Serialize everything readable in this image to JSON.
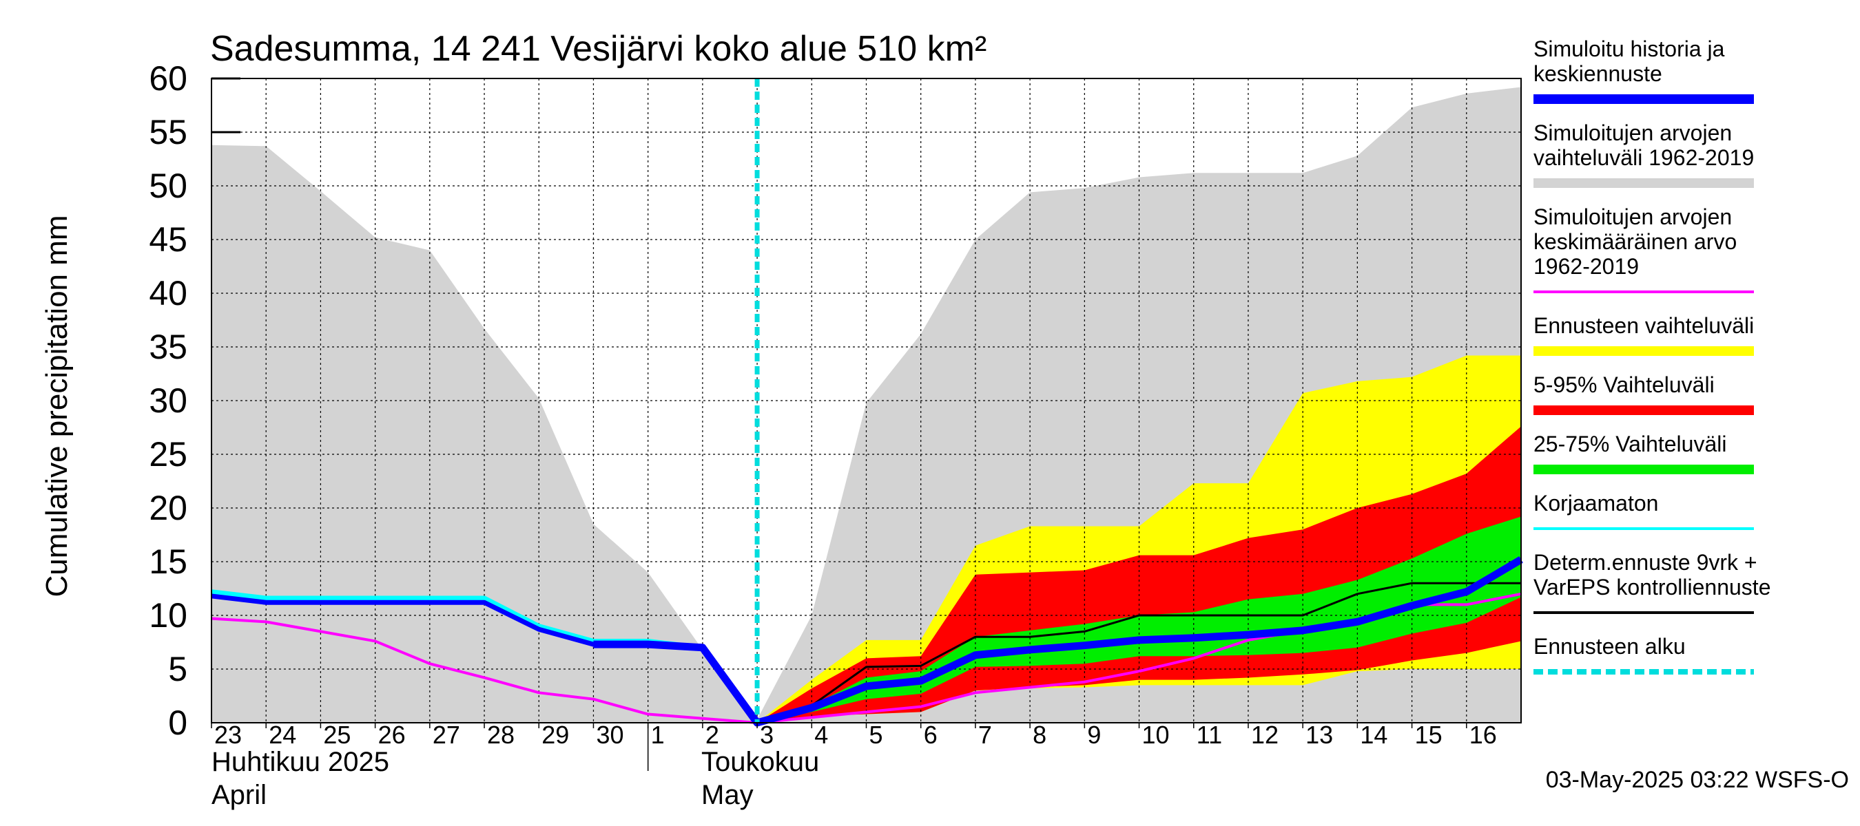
{
  "colors": {
    "history_range": "#d3d3d3",
    "ens_range": "#ffff00",
    "p5_95": "#ff0000",
    "p25_75": "#00ee00",
    "simulated": "#0000ff",
    "mean": "#ff00ff",
    "uncorrected": "#00ffff",
    "deterministic": "#000000",
    "forecast_start": "#00dddd",
    "grid": "#000000"
  },
  "chart_data": {
    "type": "area",
    "title": "Sadesumma, 14 241 Vesijärvi koko alue 510 km²",
    "ylabel": "Cumulative precipitation   mm",
    "xlabel": "",
    "ylim": [
      0,
      60
    ],
    "yticks": [
      0,
      5,
      10,
      15,
      20,
      25,
      30,
      35,
      40,
      45,
      50,
      55,
      60
    ],
    "grid": true,
    "x_range": [
      0,
      24
    ],
    "day_ticks": [
      {
        "x": 0,
        "label": "23"
      },
      {
        "x": 1,
        "label": "24"
      },
      {
        "x": 2,
        "label": "25"
      },
      {
        "x": 3,
        "label": "26"
      },
      {
        "x": 4,
        "label": "27"
      },
      {
        "x": 5,
        "label": "28"
      },
      {
        "x": 6,
        "label": "29"
      },
      {
        "x": 7,
        "label": "30"
      },
      {
        "x": 8,
        "label": "1"
      },
      {
        "x": 9,
        "label": "2"
      },
      {
        "x": 10,
        "label": "3"
      },
      {
        "x": 11,
        "label": "4"
      },
      {
        "x": 12,
        "label": "5"
      },
      {
        "x": 13,
        "label": "6"
      },
      {
        "x": 14,
        "label": "7"
      },
      {
        "x": 15,
        "label": "8"
      },
      {
        "x": 16,
        "label": "9"
      },
      {
        "x": 17,
        "label": "10"
      },
      {
        "x": 18,
        "label": "11"
      },
      {
        "x": 19,
        "label": "12"
      },
      {
        "x": 20,
        "label": "13"
      },
      {
        "x": 21,
        "label": "14"
      },
      {
        "x": 22,
        "label": "15"
      },
      {
        "x": 23,
        "label": "16"
      }
    ],
    "month_labels": {
      "april_fi": "Huhtikuu  2025",
      "april_en": "April",
      "may_fi": "Toukokuu",
      "may_en": "May"
    },
    "month_boundary_x": 8,
    "forecast_start_x": 10,
    "legend_placement": "right",
    "timestamp": "03-May-2025 03:22 WSFS-O",
    "series": [
      {
        "name": "Simuloitujen arvojen vaihteluväli 1962-2019",
        "kind": "band",
        "x": [
          0,
          1,
          2,
          3,
          4,
          5,
          6,
          7,
          8,
          9,
          10,
          11,
          12,
          13,
          14,
          15,
          16,
          17,
          18,
          19,
          20,
          21,
          22,
          23,
          24
        ],
        "lower": [
          0,
          0,
          0,
          0,
          0,
          0,
          0,
          0,
          0,
          0,
          0,
          0,
          0,
          0,
          0,
          0,
          0,
          0,
          0,
          0,
          0,
          0,
          0,
          0,
          0
        ],
        "upper": [
          53.8,
          53.7,
          49.5,
          45.2,
          44.0,
          36.7,
          30.2,
          18.5,
          14.0,
          6.8,
          0.3,
          10.0,
          29.8,
          36.2,
          45.0,
          49.4,
          49.8,
          50.8,
          51.2,
          51.2,
          51.2,
          52.8,
          57.3,
          58.6,
          59.2
        ]
      },
      {
        "name": "Ennusteen vaihteluväli",
        "kind": "band",
        "x": [
          10,
          11,
          12,
          13,
          14,
          15,
          16,
          17,
          18,
          19,
          20,
          21,
          22,
          23,
          24
        ],
        "lower": [
          0,
          0.6,
          0.8,
          1.0,
          3.0,
          3.2,
          3.3,
          3.5,
          3.5,
          3.5,
          3.5,
          4.8,
          5.0,
          5.0,
          5.0
        ],
        "upper": [
          0,
          4.0,
          7.7,
          7.7,
          16.5,
          18.3,
          18.3,
          18.3,
          22.3,
          22.3,
          30.7,
          31.8,
          32.2,
          34.2,
          34.2
        ]
      },
      {
        "name": "5-95% Vaihteluväli",
        "kind": "band",
        "x": [
          10,
          11,
          12,
          13,
          14,
          15,
          16,
          17,
          18,
          19,
          20,
          21,
          22,
          23,
          24
        ],
        "lower": [
          0,
          0.6,
          0.8,
          1.0,
          3.0,
          3.3,
          3.5,
          4.0,
          4.0,
          4.2,
          4.5,
          4.9,
          5.8,
          6.5,
          7.6
        ],
        "upper": [
          0,
          3.2,
          6.0,
          6.2,
          13.8,
          14.0,
          14.2,
          15.6,
          15.6,
          17.2,
          18.0,
          20.0,
          21.3,
          23.2,
          27.6
        ]
      },
      {
        "name": "25-75% Vaihteluväli",
        "kind": "band",
        "x": [
          10,
          11,
          12,
          13,
          14,
          15,
          16,
          17,
          18,
          19,
          20,
          21,
          22,
          23,
          24
        ],
        "lower": [
          0,
          1.0,
          2.2,
          2.7,
          5.2,
          5.3,
          5.5,
          6.2,
          6.2,
          6.3,
          6.5,
          7.0,
          8.3,
          9.3,
          11.7
        ],
        "upper": [
          0,
          1.6,
          4.2,
          4.8,
          8.0,
          8.6,
          9.2,
          10.0,
          10.3,
          11.5,
          12.0,
          13.3,
          15.3,
          17.6,
          19.2
        ]
      },
      {
        "name": "Simuloitujen arvojen keskimääräinen arvo 1962-2019",
        "kind": "line",
        "x": [
          0,
          1,
          2,
          3,
          4,
          5,
          6,
          7,
          8,
          9,
          10,
          11,
          12,
          13,
          14,
          15,
          16,
          17,
          18,
          19,
          20,
          21,
          22,
          23,
          24
        ],
        "y": [
          9.7,
          9.4,
          8.5,
          7.6,
          5.5,
          4.2,
          2.8,
          2.2,
          0.8,
          0.4,
          0.0,
          0.5,
          1.0,
          1.5,
          2.8,
          3.3,
          3.8,
          4.8,
          6.0,
          7.7,
          8.6,
          9.5,
          11.0,
          11.0,
          12.0
        ]
      },
      {
        "name": "Korjaamaton",
        "kind": "line",
        "x": [
          0,
          1,
          2,
          3,
          4,
          5,
          6,
          7,
          8,
          9,
          10
        ],
        "y": [
          12.2,
          11.6,
          11.6,
          11.6,
          11.6,
          11.6,
          9.0,
          7.6,
          7.6,
          7.0,
          0.0
        ]
      },
      {
        "name": "Determ.ennuste 9vrk + VarEPS kontrolliennuste",
        "kind": "line",
        "x": [
          10,
          11,
          12,
          13,
          14,
          15,
          16,
          17,
          18,
          19,
          20,
          21,
          22,
          23,
          24
        ],
        "y": [
          0,
          1.6,
          5.2,
          5.3,
          8.0,
          8.0,
          8.5,
          10.0,
          10.0,
          10.0,
          10.0,
          12.0,
          13.0,
          13.0,
          13.0
        ]
      },
      {
        "name": "Simuloitu historia ja keskiennuste",
        "kind": "line",
        "x": [
          0,
          1,
          2,
          3,
          4,
          5,
          6,
          7,
          8,
          9,
          10,
          11,
          12,
          13,
          14,
          15,
          16,
          17,
          18,
          19,
          20,
          21,
          22,
          23,
          24
        ],
        "y": [
          11.8,
          11.2,
          11.2,
          11.2,
          11.2,
          11.2,
          8.7,
          7.3,
          7.3,
          7.0,
          0.0,
          1.4,
          3.4,
          3.9,
          6.3,
          6.8,
          7.2,
          7.7,
          7.9,
          8.2,
          8.6,
          9.4,
          10.9,
          12.2,
          15.2
        ]
      }
    ]
  },
  "legend": [
    {
      "key": "simulated",
      "lines": [
        "Simuloitu historia ja",
        "keskiennuste"
      ],
      "swatch": "bar"
    },
    {
      "key": "history_range",
      "lines": [
        "Simuloitujen arvojen",
        "vaihteluväli 1962-2019"
      ],
      "swatch": "bar"
    },
    {
      "key": "mean",
      "lines": [
        "Simuloitujen arvojen",
        "keskimääräinen arvo",
        "   1962-2019"
      ],
      "swatch": "line"
    },
    {
      "key": "ens_range",
      "lines": [
        "Ennusteen vaihteluväli"
      ],
      "swatch": "bar"
    },
    {
      "key": "p5_95",
      "lines": [
        "5-95% Vaihteluväli"
      ],
      "swatch": "bar"
    },
    {
      "key": "p25_75",
      "lines": [
        "25-75% Vaihteluväli"
      ],
      "swatch": "bar"
    },
    {
      "key": "uncorrected",
      "lines": [
        "Korjaamaton"
      ],
      "swatch": "line"
    },
    {
      "key": "deterministic",
      "lines": [
        "Determ.ennuste 9vrk +",
        "VarEPS kontrolliennuste"
      ],
      "swatch": "line"
    },
    {
      "key": "forecast_start",
      "lines": [
        "Ennusteen alku"
      ],
      "swatch": "dash"
    }
  ]
}
